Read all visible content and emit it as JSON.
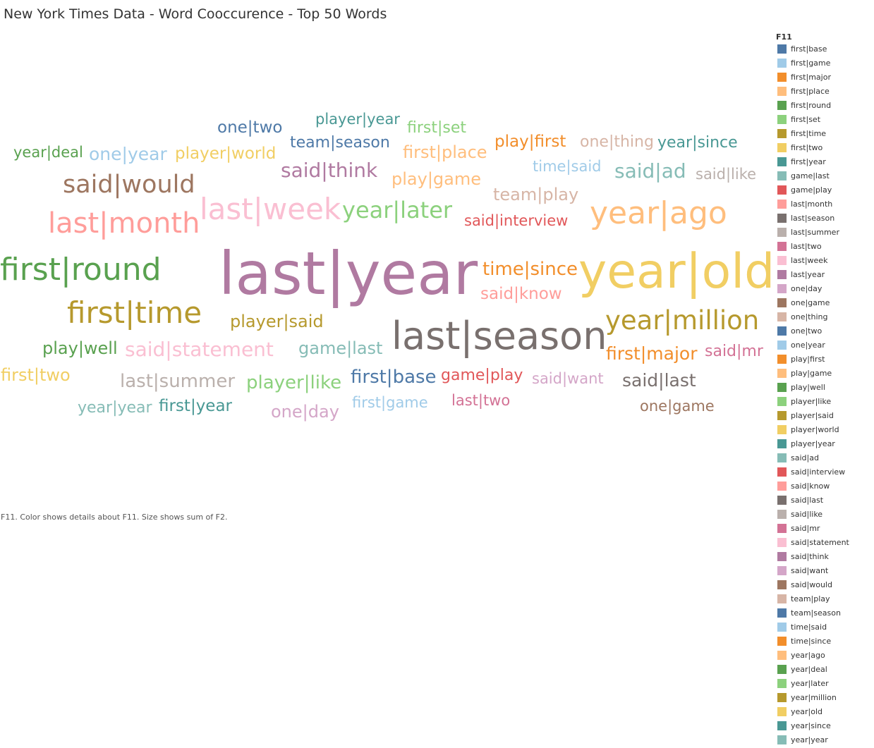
{
  "title": "New York Times Data - Word Cooccurence - Top 50 Words",
  "caption": "F11.  Color shows details about F11.  Size shows sum of F2.",
  "legend": {
    "title": "F11",
    "items": [
      {
        "label": "first|base",
        "color": "#4e79a7"
      },
      {
        "label": "first|game",
        "color": "#a0cbe8"
      },
      {
        "label": "first|major",
        "color": "#f28e2b"
      },
      {
        "label": "first|place",
        "color": "#ffbe7d"
      },
      {
        "label": "first|round",
        "color": "#59a14f"
      },
      {
        "label": "first|set",
        "color": "#8cd17d"
      },
      {
        "label": "first|time",
        "color": "#b6992d"
      },
      {
        "label": "first|two",
        "color": "#f1ce63"
      },
      {
        "label": "first|year",
        "color": "#499894"
      },
      {
        "label": "game|last",
        "color": "#86bcb6"
      },
      {
        "label": "game|play",
        "color": "#e15759"
      },
      {
        "label": "last|month",
        "color": "#ff9d9a"
      },
      {
        "label": "last|season",
        "color": "#79706e"
      },
      {
        "label": "last|summer",
        "color": "#bab0ac"
      },
      {
        "label": "last|two",
        "color": "#d37295"
      },
      {
        "label": "last|week",
        "color": "#fabfd2"
      },
      {
        "label": "last|year",
        "color": "#b07aa1"
      },
      {
        "label": "one|day",
        "color": "#d4a6c8"
      },
      {
        "label": "one|game",
        "color": "#9d7660"
      },
      {
        "label": "one|thing",
        "color": "#d7b5a6"
      },
      {
        "label": "one|two",
        "color": "#4e79a7"
      },
      {
        "label": "one|year",
        "color": "#a0cbe8"
      },
      {
        "label": "play|first",
        "color": "#f28e2b"
      },
      {
        "label": "play|game",
        "color": "#ffbe7d"
      },
      {
        "label": "play|well",
        "color": "#59a14f"
      },
      {
        "label": "player|like",
        "color": "#8cd17d"
      },
      {
        "label": "player|said",
        "color": "#b6992d"
      },
      {
        "label": "player|world",
        "color": "#f1ce63"
      },
      {
        "label": "player|year",
        "color": "#499894"
      },
      {
        "label": "said|ad",
        "color": "#86bcb6"
      },
      {
        "label": "said|interview",
        "color": "#e15759"
      },
      {
        "label": "said|know",
        "color": "#ff9d9a"
      },
      {
        "label": "said|last",
        "color": "#79706e"
      },
      {
        "label": "said|like",
        "color": "#bab0ac"
      },
      {
        "label": "said|mr",
        "color": "#d37295"
      },
      {
        "label": "said|statement",
        "color": "#fabfd2"
      },
      {
        "label": "said|think",
        "color": "#b07aa1"
      },
      {
        "label": "said|want",
        "color": "#d4a6c8"
      },
      {
        "label": "said|would",
        "color": "#9d7660"
      },
      {
        "label": "team|play",
        "color": "#d7b5a6"
      },
      {
        "label": "team|season",
        "color": "#4e79a7"
      },
      {
        "label": "time|said",
        "color": "#a0cbe8"
      },
      {
        "label": "time|since",
        "color": "#f28e2b"
      },
      {
        "label": "year|ago",
        "color": "#ffbe7d"
      },
      {
        "label": "year|deal",
        "color": "#59a14f"
      },
      {
        "label": "year|later",
        "color": "#8cd17d"
      },
      {
        "label": "year|million",
        "color": "#b6992d"
      },
      {
        "label": "year|old",
        "color": "#f1ce63"
      },
      {
        "label": "year|since",
        "color": "#499894"
      },
      {
        "label": "year|year",
        "color": "#86bcb6"
      }
    ]
  },
  "chart_data": {
    "type": "word_cloud",
    "title": "New York Times Data - Word Cooccurence - Top 50 Words",
    "color_field": "F11",
    "size_field": "sum of F2",
    "words": [
      {
        "text": "last|year",
        "size": 100,
        "color": "#b07aa1"
      },
      {
        "text": "year|old",
        "size": 82,
        "color": "#f1ce63"
      },
      {
        "text": "last|season",
        "size": 66,
        "color": "#79706e"
      },
      {
        "text": "first|round",
        "size": 55,
        "color": "#59a14f"
      },
      {
        "text": "year|ago",
        "size": 55,
        "color": "#ffbe7d"
      },
      {
        "text": "first|time",
        "size": 53,
        "color": "#b6992d"
      },
      {
        "text": "last|week",
        "size": 52,
        "color": "#fabfd2"
      },
      {
        "text": "last|month",
        "size": 50,
        "color": "#ff9d9a"
      },
      {
        "text": "year|million",
        "size": 47,
        "color": "#b6992d"
      },
      {
        "text": "said|would",
        "size": 44,
        "color": "#9d7660"
      },
      {
        "text": "year|later",
        "size": 41,
        "color": "#8cd17d"
      },
      {
        "text": "said|ad",
        "size": 36,
        "color": "#86bcb6"
      },
      {
        "text": "said|statement",
        "size": 36,
        "color": "#fabfd2"
      },
      {
        "text": "said|think",
        "size": 35,
        "color": "#b07aa1"
      },
      {
        "text": "time|since",
        "size": 33,
        "color": "#f28e2b"
      },
      {
        "text": "last|summer",
        "size": 33,
        "color": "#bab0ac"
      },
      {
        "text": "player|like",
        "size": 33,
        "color": "#8cd17d"
      },
      {
        "text": "first|base",
        "size": 33,
        "color": "#4e79a7"
      },
      {
        "text": "said|last",
        "size": 32,
        "color": "#79706e"
      },
      {
        "text": "one|year",
        "size": 32,
        "color": "#a0cbe8"
      },
      {
        "text": "first|major",
        "size": 32,
        "color": "#f28e2b"
      },
      {
        "text": "team|play",
        "size": 31,
        "color": "#d7b5a6"
      },
      {
        "text": "play|game",
        "size": 31,
        "color": "#ffbe7d"
      },
      {
        "text": "first|place",
        "size": 31,
        "color": "#ffbe7d"
      },
      {
        "text": "play|well",
        "size": 31,
        "color": "#59a14f"
      },
      {
        "text": "player|said",
        "size": 31,
        "color": "#b6992d"
      },
      {
        "text": "game|last",
        "size": 31,
        "color": "#86bcb6"
      },
      {
        "text": "one|day",
        "size": 31,
        "color": "#d4a6c8"
      },
      {
        "text": "first|two",
        "size": 30,
        "color": "#f1ce63"
      },
      {
        "text": "player|world",
        "size": 30,
        "color": "#f1ce63"
      },
      {
        "text": "one|two",
        "size": 30,
        "color": "#4e79a7"
      },
      {
        "text": "play|first",
        "size": 30,
        "color": "#f28e2b"
      },
      {
        "text": "said|know",
        "size": 29,
        "color": "#ff9d9a"
      },
      {
        "text": "first|year",
        "size": 29,
        "color": "#499894"
      },
      {
        "text": "year|since",
        "size": 29,
        "color": "#499894"
      },
      {
        "text": "game|play",
        "size": 29,
        "color": "#e15759"
      },
      {
        "text": "said|mr",
        "size": 29,
        "color": "#d37295"
      },
      {
        "text": "first|set",
        "size": 28,
        "color": "#8cd17d"
      },
      {
        "text": "team|season",
        "size": 28,
        "color": "#4e79a7"
      },
      {
        "text": "one|thing",
        "size": 28,
        "color": "#d7b5a6"
      },
      {
        "text": "year|year",
        "size": 28,
        "color": "#86bcb6"
      },
      {
        "text": "said|interview",
        "size": 28,
        "color": "#e15759"
      },
      {
        "text": "said|like",
        "size": 28,
        "color": "#bab0ac"
      },
      {
        "text": "time|said",
        "size": 28,
        "color": "#a0cbe8"
      },
      {
        "text": "said|want",
        "size": 28,
        "color": "#d4a6c8"
      },
      {
        "text": "player|year",
        "size": 28,
        "color": "#499894"
      },
      {
        "text": "year|deal",
        "size": 27,
        "color": "#59a14f"
      },
      {
        "text": "first|game",
        "size": 27,
        "color": "#a0cbe8"
      },
      {
        "text": "last|two",
        "size": 27,
        "color": "#d37295"
      },
      {
        "text": "one|game",
        "size": 27,
        "color": "#9d7660"
      }
    ]
  }
}
